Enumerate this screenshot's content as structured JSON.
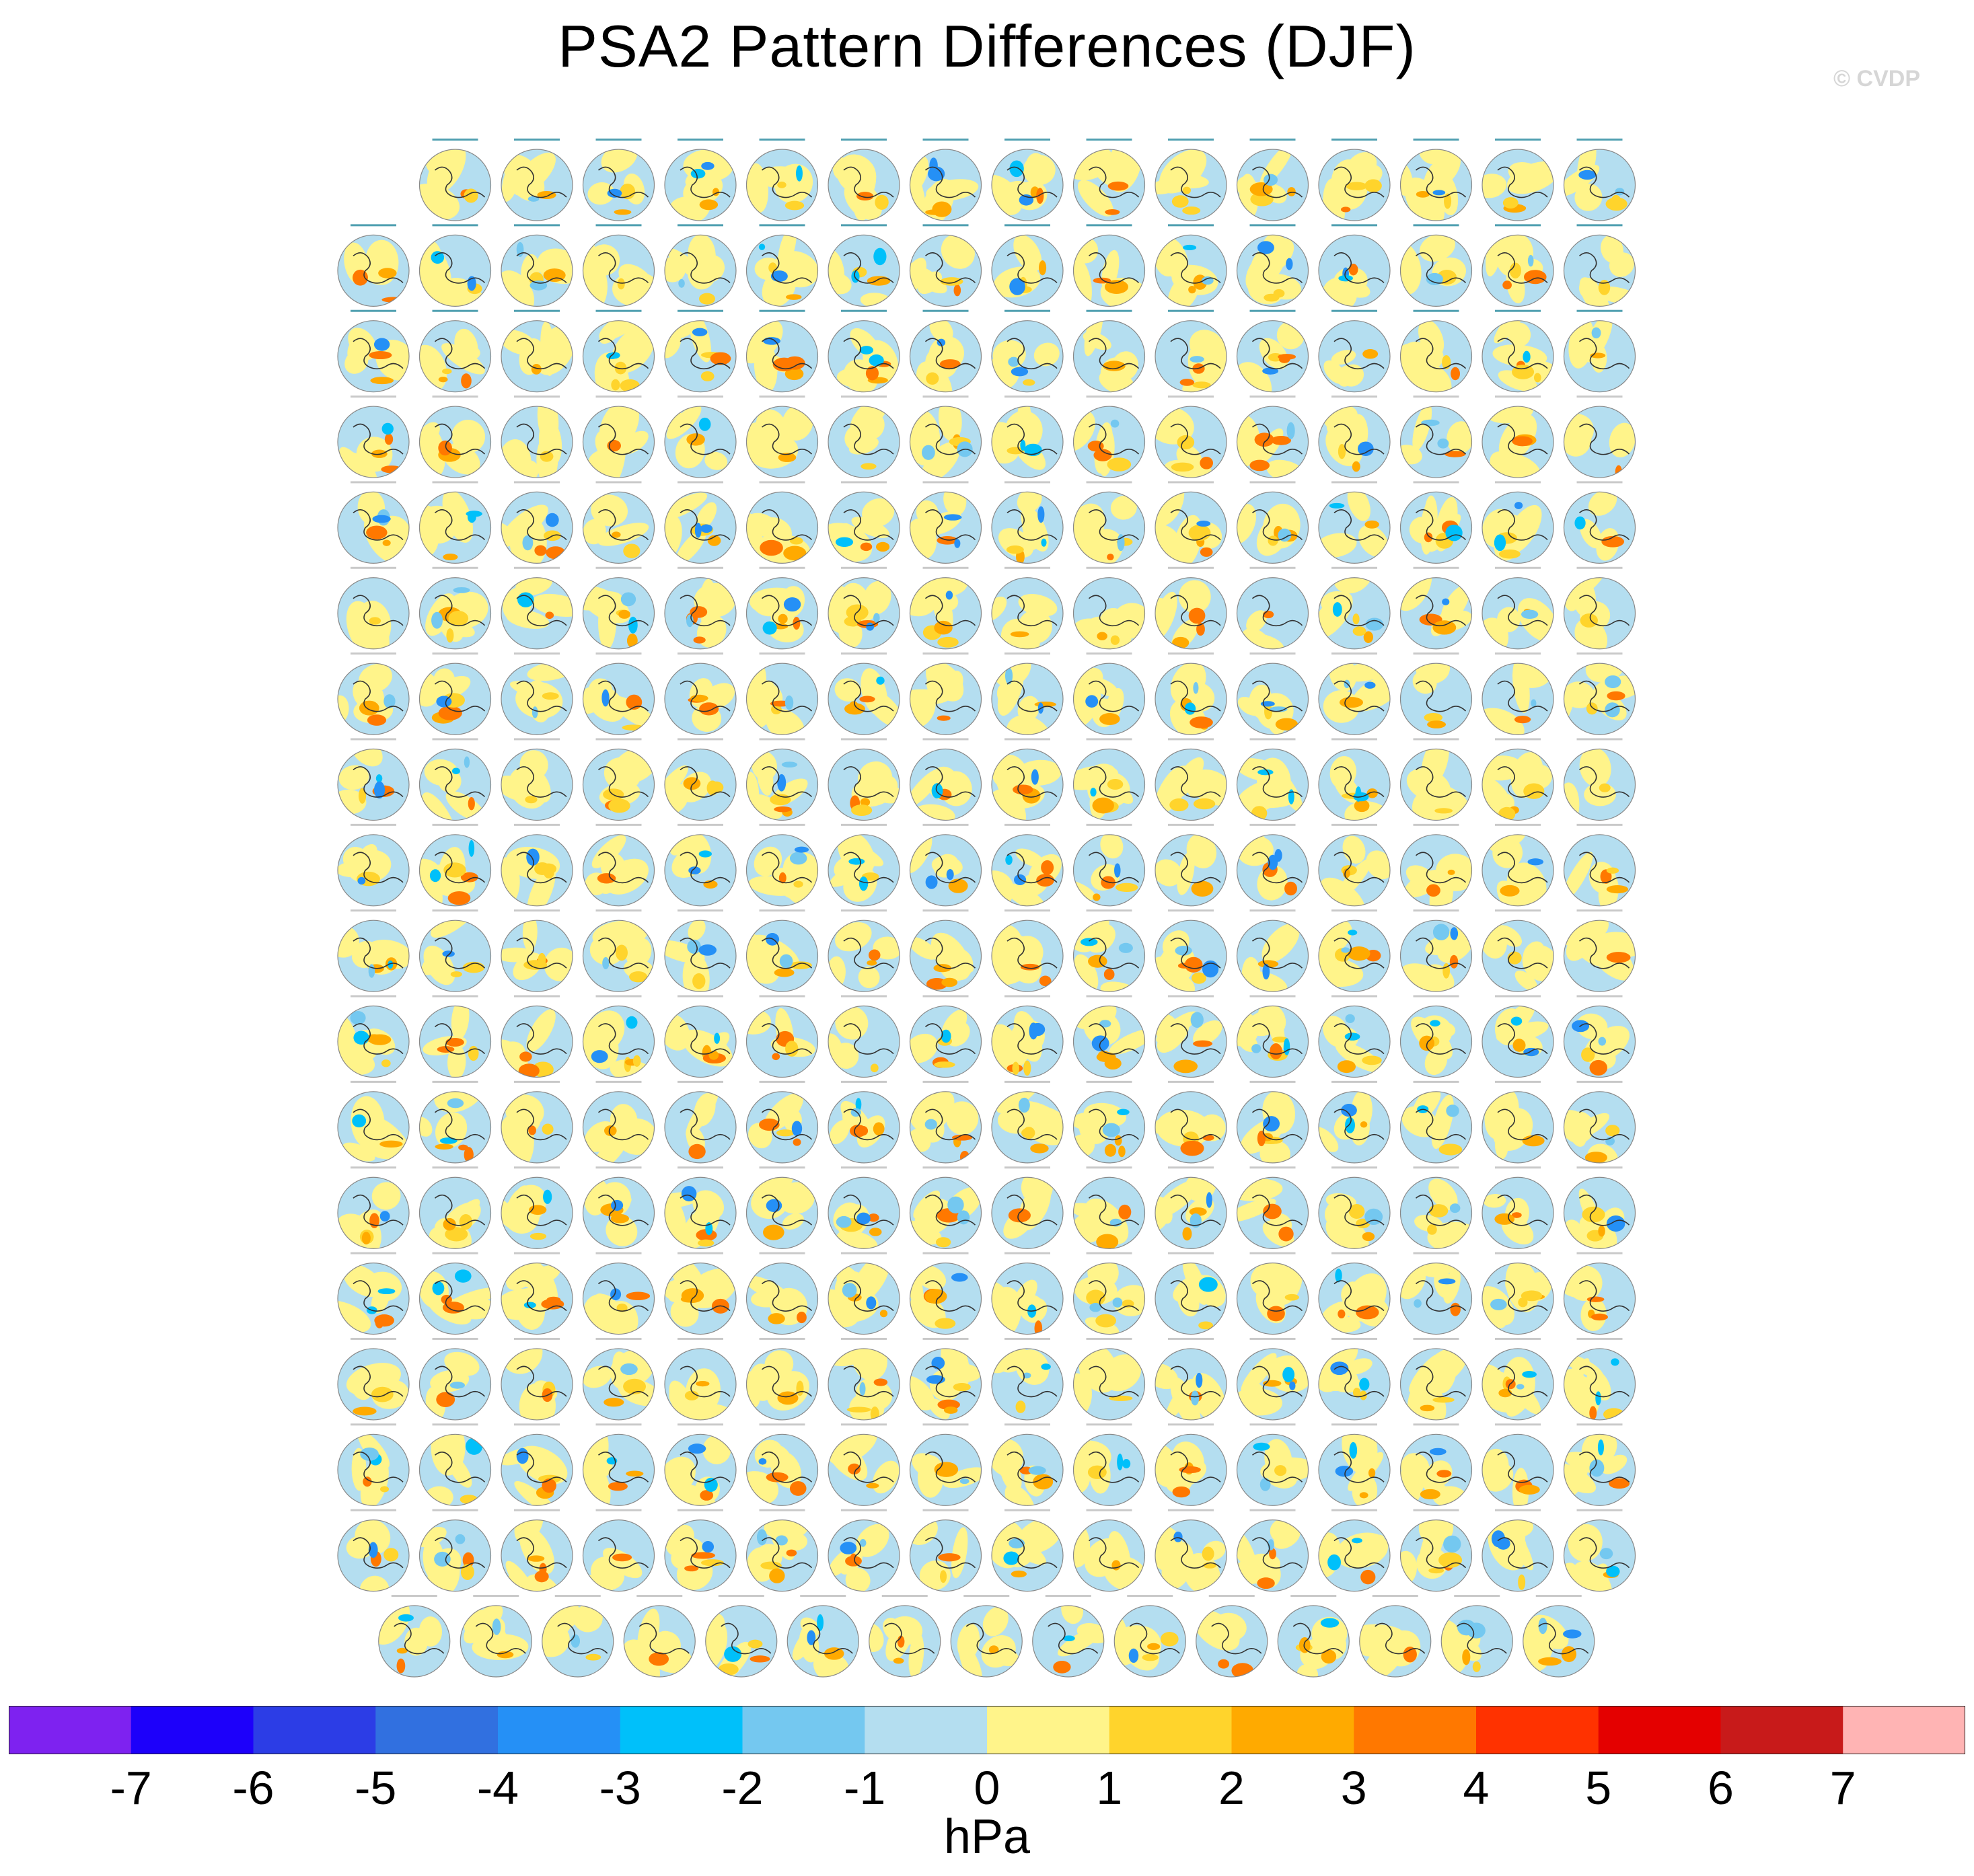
{
  "title": "PSA2 Pattern Differences (DJF)",
  "copyright": "© CVDP",
  "figure": {
    "kind": "panel-grid",
    "map_projection": "south-polar-stereographic",
    "row_counts": [
      15,
      16,
      16,
      16,
      16,
      16,
      16,
      16,
      16,
      16,
      16,
      16,
      16,
      16,
      16,
      16,
      16,
      15
    ],
    "total_panels": 286,
    "panel_titles_legible": false
  },
  "colorbar": {
    "units": "hPa",
    "tick_labels": [
      "-7",
      "-6",
      "-5",
      "-4",
      "-3",
      "-2",
      "-1",
      "0",
      "1",
      "2",
      "3",
      "4",
      "5",
      "6",
      "7"
    ],
    "colors": [
      "#7e22f0",
      "#1d00fa",
      "#2c3de6",
      "#3170e0",
      "#2590f6",
      "#00c0fa",
      "#74c8f0",
      "#b4def0",
      "#fff48a",
      "#ffd42c",
      "#ffaa00",
      "#ff7800",
      "#ff3200",
      "#e40000",
      "#c81a1a",
      "#ffb4b4"
    ]
  },
  "palette": {
    "ocean_bg": "#b4def0",
    "neutral_pos": "#fff48a",
    "coast": "#333333",
    "rim": "#888888"
  }
}
